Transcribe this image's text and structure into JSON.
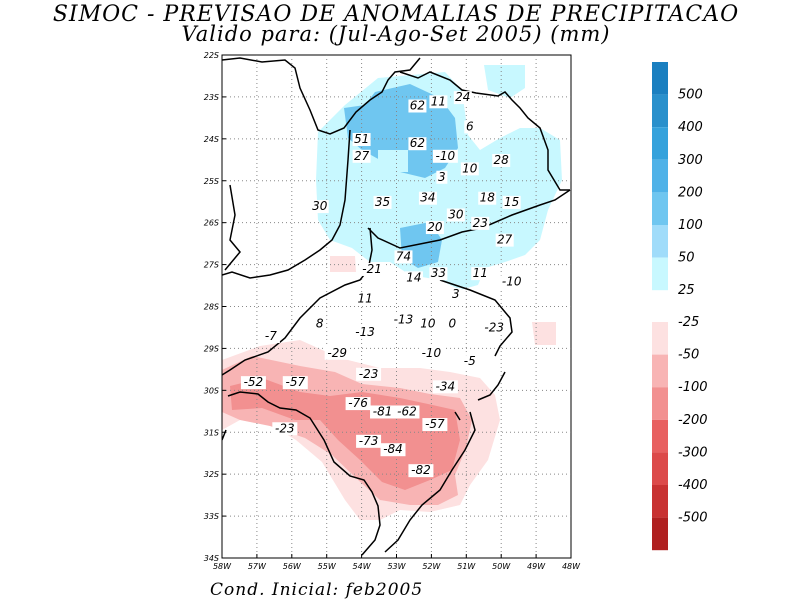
{
  "title_line1": "SIMOC - PREVISAO DE ANOMALIAS DE PRECIPITACAO",
  "title_line2": "Valido para: (Jul-Ago-Set 2005) (mm)",
  "footer": "Cond. Inicial: feb2005",
  "map": {
    "lon_range": [
      -58,
      -48
    ],
    "lat_range": [
      -34,
      -22
    ],
    "lon_ticks": [
      "58W",
      "57W",
      "56W",
      "55W",
      "54W",
      "53W",
      "52W",
      "51W",
      "50W",
      "49W",
      "48W"
    ],
    "lat_ticks": [
      "22S",
      "23S",
      "24S",
      "25S",
      "26S",
      "27S",
      "28S",
      "29S",
      "30S",
      "31S",
      "32S",
      "33S",
      "34S"
    ],
    "grid": "dotted"
  },
  "colorbar": {
    "positive": [
      {
        "label": "500",
        "color": "#1a7fc0"
      },
      {
        "label": "400",
        "color": "#2990cc"
      },
      {
        "label": "300",
        "color": "#35a2dc"
      },
      {
        "label": "200",
        "color": "#4fb2e8"
      },
      {
        "label": "100",
        "color": "#6fc6f0"
      },
      {
        "label": "50",
        "color": "#a0dcfa"
      },
      {
        "label": "25",
        "color": "#c8f8ff"
      }
    ],
    "negative": [
      {
        "label": "-25",
        "color": "#fde1e1"
      },
      {
        "label": "-50",
        "color": "#f8b4b4"
      },
      {
        "label": "-100",
        "color": "#f29090"
      },
      {
        "label": "-200",
        "color": "#e86060"
      },
      {
        "label": "-300",
        "color": "#dc4a4a"
      },
      {
        "label": "-400",
        "color": "#c83232"
      },
      {
        "label": "-500",
        "color": "#b02020"
      }
    ]
  },
  "anomaly_values": [
    {
      "lon": -52.4,
      "lat": -23.3,
      "value": "62"
    },
    {
      "lon": -51.8,
      "lat": -23.2,
      "value": "11"
    },
    {
      "lon": -51.1,
      "lat": -23.1,
      "value": "24"
    },
    {
      "lon": -50.9,
      "lat": -23.8,
      "value": "6"
    },
    {
      "lon": -54.0,
      "lat": -24.1,
      "value": "51"
    },
    {
      "lon": -54.0,
      "lat": -24.5,
      "value": "27"
    },
    {
      "lon": -52.4,
      "lat": -24.2,
      "value": "62"
    },
    {
      "lon": -51.6,
      "lat": -24.5,
      "value": "-10"
    },
    {
      "lon": -50.9,
      "lat": -24.8,
      "value": "10"
    },
    {
      "lon": -50.0,
      "lat": -24.6,
      "value": "28"
    },
    {
      "lon": -51.7,
      "lat": -25.0,
      "value": "3"
    },
    {
      "lon": -55.2,
      "lat": -25.7,
      "value": "30"
    },
    {
      "lon": -53.4,
      "lat": -25.6,
      "value": "35"
    },
    {
      "lon": -52.1,
      "lat": -25.5,
      "value": "34"
    },
    {
      "lon": -50.4,
      "lat": -25.5,
      "value": "18"
    },
    {
      "lon": -49.7,
      "lat": -25.6,
      "value": "15"
    },
    {
      "lon": -51.3,
      "lat": -25.9,
      "value": "30"
    },
    {
      "lon": -50.6,
      "lat": -26.1,
      "value": "23"
    },
    {
      "lon": -51.9,
      "lat": -26.2,
      "value": "20"
    },
    {
      "lon": -49.9,
      "lat": -26.5,
      "value": "27"
    },
    {
      "lon": -52.8,
      "lat": -26.9,
      "value": "74"
    },
    {
      "lon": -53.7,
      "lat": -27.2,
      "value": "-21"
    },
    {
      "lon": -52.5,
      "lat": -27.4,
      "value": "14"
    },
    {
      "lon": -51.8,
      "lat": -27.3,
      "value": "33"
    },
    {
      "lon": -50.6,
      "lat": -27.3,
      "value": "11"
    },
    {
      "lon": -49.7,
      "lat": -27.5,
      "value": "-10"
    },
    {
      "lon": -53.9,
      "lat": -27.9,
      "value": "11"
    },
    {
      "lon": -51.3,
      "lat": -27.8,
      "value": "3"
    },
    {
      "lon": -55.2,
      "lat": -28.5,
      "value": "8"
    },
    {
      "lon": -53.9,
      "lat": -28.7,
      "value": "-13"
    },
    {
      "lon": -52.8,
      "lat": -28.4,
      "value": "-13"
    },
    {
      "lon": -52.1,
      "lat": -28.5,
      "value": "10"
    },
    {
      "lon": -51.4,
      "lat": -28.5,
      "value": "0"
    },
    {
      "lon": -50.2,
      "lat": -28.6,
      "value": "-23"
    },
    {
      "lon": -56.6,
      "lat": -28.8,
      "value": "-7"
    },
    {
      "lon": -54.7,
      "lat": -29.2,
      "value": "-29"
    },
    {
      "lon": -52.0,
      "lat": -29.2,
      "value": "-10"
    },
    {
      "lon": -50.9,
      "lat": -29.4,
      "value": "-5"
    },
    {
      "lon": -53.8,
      "lat": -29.7,
      "value": "-23"
    },
    {
      "lon": -57.1,
      "lat": -29.9,
      "value": "-52"
    },
    {
      "lon": -55.9,
      "lat": -29.9,
      "value": "-57"
    },
    {
      "lon": -51.6,
      "lat": -30.0,
      "value": "-34"
    },
    {
      "lon": -54.1,
      "lat": -30.4,
      "value": "-76"
    },
    {
      "lon": -53.4,
      "lat": -30.6,
      "value": "-81"
    },
    {
      "lon": -52.7,
      "lat": -30.6,
      "value": "-62"
    },
    {
      "lon": -51.9,
      "lat": -30.9,
      "value": "-57"
    },
    {
      "lon": -56.2,
      "lat": -31.0,
      "value": "-23"
    },
    {
      "lon": -53.8,
      "lat": -31.3,
      "value": "-73"
    },
    {
      "lon": -53.1,
      "lat": -31.5,
      "value": "-84"
    },
    {
      "lon": -52.3,
      "lat": -32.0,
      "value": "-82"
    }
  ]
}
